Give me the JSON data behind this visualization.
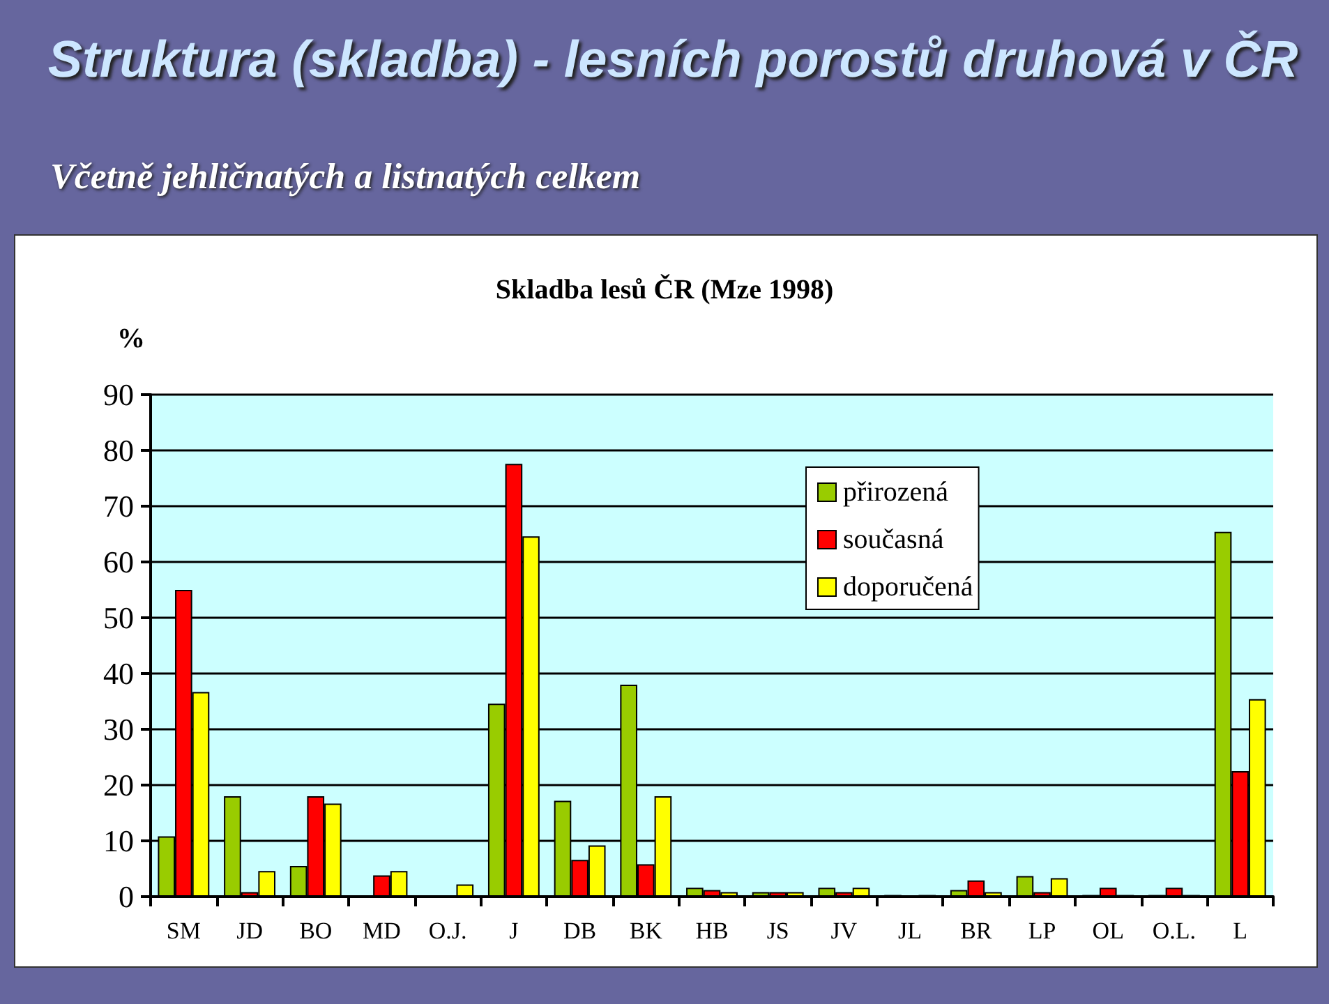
{
  "chart_data": {
    "type": "bar",
    "title": "Struktura (skladba) - lesních porostů druhová v ČR",
    "subtitle": "Včetně jehličnatých a listnatých celkem",
    "annotations": [
      "Skladba lesů ČR (Mze 1998)"
    ],
    "ylabel": "%",
    "categories": [
      "SM",
      "JD",
      "BO",
      "MD",
      "O.J.",
      "J",
      "DB",
      "BK",
      "HB",
      "JS",
      "JV",
      "JL",
      "BR",
      "LP",
      "OL",
      "O.L.",
      "L"
    ],
    "series": [
      {
        "name": "přirozená",
        "color": "#99cc00",
        "values": [
          10.8,
          18,
          5.5,
          0,
          0,
          34.6,
          17.2,
          38,
          1.6,
          0.8,
          1.6,
          0.3,
          1.2,
          3.7,
          0.3,
          0.3,
          65.4
        ]
      },
      {
        "name": "současná",
        "color": "#ff0000",
        "values": [
          55,
          0.8,
          18,
          3.8,
          0,
          77.6,
          6.6,
          5.8,
          1.2,
          0.8,
          0.8,
          0,
          2.9,
          0.8,
          1.6,
          1.6,
          22.5
        ]
      },
      {
        "name": "doporučená",
        "color": "#ffff00",
        "values": [
          36.7,
          4.6,
          16.7,
          4.6,
          2.2,
          64.6,
          9.2,
          18,
          0.8,
          0.8,
          1.6,
          0.3,
          0.8,
          3.3,
          0.3,
          0.3,
          35.4
        ]
      }
    ],
    "ylim": [
      0,
      90
    ],
    "yticks": [
      0,
      10,
      20,
      30,
      40,
      50,
      60,
      70,
      80,
      90
    ],
    "grid": "y",
    "legend": "top right"
  }
}
